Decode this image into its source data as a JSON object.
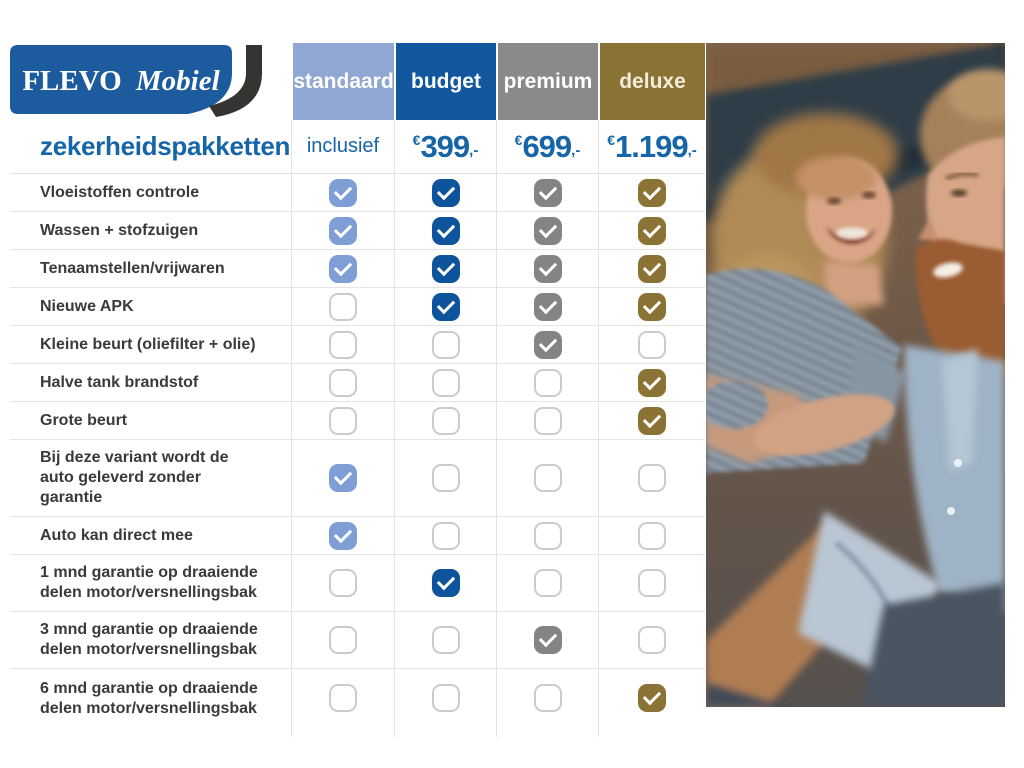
{
  "brand": {
    "primary": "FLEVO",
    "secondary": "Mobiel"
  },
  "title": "zekerheidspakketten",
  "accent": {
    "heading_blue": "#1565a8",
    "row_text": "#3a3a3a",
    "logo_blue": "#1c5b9e",
    "swoosh_dark": "#353433"
  },
  "columns": [
    {
      "label": "standaard",
      "color": "#8fa7d2",
      "check_color": "#7f9ed6",
      "text_color": "#ffffff",
      "price": {
        "text": "inclusief"
      }
    },
    {
      "label": "budget",
      "color": "#12579e",
      "check_color": "#0e549c",
      "text_color": "#ffffff",
      "price": {
        "currency": "€",
        "amount": "399",
        "suffix": ",-"
      }
    },
    {
      "label": "premium",
      "color": "#8b898b",
      "check_color": "#858385",
      "text_color": "#ffffff",
      "price": {
        "currency": "€",
        "amount": "699",
        "suffix": ",-"
      }
    },
    {
      "label": "deluxe",
      "color": "#8a7334",
      "check_color": "#8a7334",
      "text_color": "#f2ecd8",
      "price": {
        "currency": "€",
        "amount": "1.199",
        "suffix": ",-"
      }
    }
  ],
  "rows": [
    {
      "label": "Vloeistoffen controle",
      "checks": [
        true,
        true,
        true,
        true
      ]
    },
    {
      "label": "Wassen + stofzuigen",
      "checks": [
        true,
        true,
        true,
        true
      ]
    },
    {
      "label": "Tenaamstellen/vrijwaren",
      "checks": [
        true,
        true,
        true,
        true
      ]
    },
    {
      "label": "Nieuwe APK",
      "checks": [
        false,
        true,
        true,
        true
      ]
    },
    {
      "label": "Kleine beurt (oliefilter + olie)",
      "checks": [
        false,
        false,
        true,
        false
      ]
    },
    {
      "label": "Halve tank brandstof",
      "checks": [
        false,
        false,
        false,
        true
      ]
    },
    {
      "label": "Grote beurt",
      "checks": [
        false,
        false,
        false,
        true
      ]
    },
    {
      "label": "Bij deze variant wordt de auto geleverd zonder garantie",
      "checks": [
        true,
        false,
        false,
        false
      ]
    },
    {
      "label": "Auto kan direct mee",
      "checks": [
        true,
        false,
        false,
        false
      ]
    },
    {
      "label": "1 mnd garantie op draaiende delen motor/versnellingsbak",
      "checks": [
        false,
        true,
        false,
        false
      ]
    },
    {
      "label": "3 mnd garantie op draaiende delen motor/versnellingsbak",
      "checks": [
        false,
        false,
        true,
        false
      ]
    },
    {
      "label": "6 mnd garantie op draaiende delen motor/versnellingsbak",
      "checks": [
        false,
        false,
        false,
        true
      ]
    }
  ],
  "photo": {
    "description": "Smiling couple sitting together in a car"
  }
}
